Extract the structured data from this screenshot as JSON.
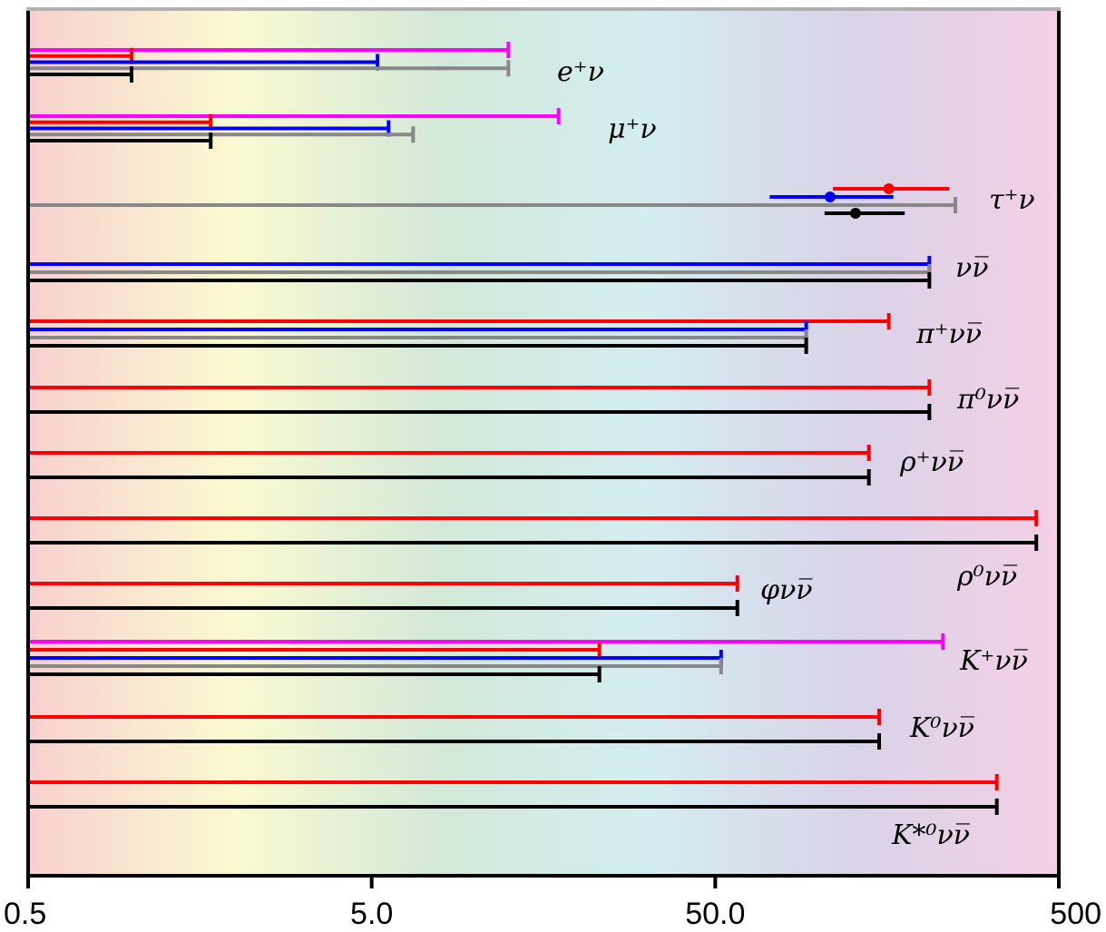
{
  "chart_data": {
    "type": "horizontal-interval",
    "x_scale": "log",
    "xlim": [
      0.5,
      500
    ],
    "ticks": [
      {
        "value": 0.5,
        "label": "0.5"
      },
      {
        "value": 5,
        "label": "5.0"
      },
      {
        "value": 50,
        "label": "50.0"
      },
      {
        "value": 500,
        "label": "500"
      }
    ],
    "colors": {
      "magenta": "#ff00ff",
      "red": "#ff0000",
      "blue": "#0000ff",
      "gray": "#888888",
      "black": "#000000"
    },
    "background_gradient": [
      "#f7d0cf",
      "#fbf9d0",
      "#d2e9d8",
      "#d3edf1",
      "#d9d3e8",
      "#f4d0e6"
    ],
    "channels": [
      {
        "label": "e⁺ν",
        "bars": [
          {
            "color": "magenta",
            "upper": 12.5
          },
          {
            "color": "red",
            "upper": 1.0
          },
          {
            "color": "blue",
            "upper": 5.2
          },
          {
            "color": "gray",
            "upper": 12.5
          },
          {
            "color": "black",
            "upper": 1.0
          }
        ]
      },
      {
        "label": "μ⁺ν",
        "bars": [
          {
            "color": "magenta",
            "upper": 17.5
          },
          {
            "color": "red",
            "upper": 1.7
          },
          {
            "color": "blue",
            "upper": 5.6
          },
          {
            "color": "gray",
            "upper": 6.6
          },
          {
            "color": "black",
            "upper": 1.7
          }
        ]
      },
      {
        "label": "τ⁺ν",
        "bars": [
          {
            "color": "red",
            "central": 160,
            "low": 110,
            "high": 240
          },
          {
            "color": "blue",
            "central": 108,
            "low": 72,
            "high": 165
          },
          {
            "color": "gray",
            "upper": 250
          },
          {
            "color": "black",
            "central": 128,
            "low": 104,
            "high": 178
          }
        ]
      },
      {
        "label": "νν̅",
        "bars": [
          {
            "color": "blue",
            "upper": 210
          },
          {
            "color": "gray",
            "upper": 210
          },
          {
            "color": "black",
            "upper": 210
          }
        ]
      },
      {
        "label": "π⁺νν̅",
        "bars": [
          {
            "color": "red",
            "upper": 160
          },
          {
            "color": "blue",
            "upper": 92
          },
          {
            "color": "gray",
            "upper": 92
          },
          {
            "color": "black",
            "upper": 92
          }
        ]
      },
      {
        "label": "π⁰νν̅",
        "bars": [
          {
            "color": "red",
            "upper": 210
          },
          {
            "color": "black",
            "upper": 210
          }
        ]
      },
      {
        "label": "ρ⁺νν̅",
        "bars": [
          {
            "color": "red",
            "upper": 140
          },
          {
            "color": "black",
            "upper": 140
          }
        ]
      },
      {
        "label": "ρ⁰νν̅",
        "bars": [
          {
            "color": "red",
            "upper": 430
          },
          {
            "color": "black",
            "upper": 430
          }
        ]
      },
      {
        "label": "φνν̅",
        "bars": [
          {
            "color": "red",
            "upper": 58
          },
          {
            "color": "black",
            "upper": 58
          }
        ]
      },
      {
        "label": "K⁺νν̅",
        "bars": [
          {
            "color": "magenta",
            "upper": 230
          },
          {
            "color": "red",
            "upper": 23
          },
          {
            "color": "blue",
            "upper": 52
          },
          {
            "color": "gray",
            "upper": 52
          },
          {
            "color": "black",
            "upper": 23
          }
        ]
      },
      {
        "label": "K⁰νν̅",
        "bars": [
          {
            "color": "red",
            "upper": 150
          },
          {
            "color": "black",
            "upper": 150
          }
        ]
      },
      {
        "label": "K*⁰νν̅",
        "bars": [
          {
            "color": "red",
            "upper": 330
          },
          {
            "color": "black",
            "upper": 330
          }
        ]
      }
    ]
  }
}
